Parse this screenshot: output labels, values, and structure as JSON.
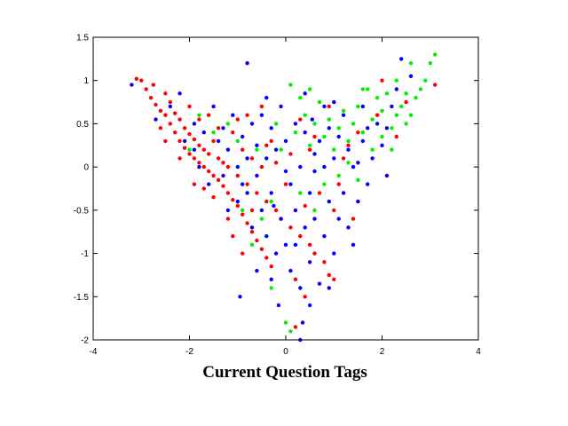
{
  "chart_data": {
    "type": "scatter",
    "title": "Current Question Tags",
    "xlabel": "",
    "ylabel": "",
    "xlim": [
      -4,
      4
    ],
    "ylim": [
      -2,
      1.5
    ],
    "x_ticks": [
      -4,
      -2,
      0,
      2,
      4
    ],
    "x_tick_labels": [
      "-4",
      "-2",
      "0",
      "2",
      "4"
    ],
    "y_ticks": [
      -2,
      -1.5,
      -1,
      -0.5,
      0,
      0.5,
      1,
      1.5
    ],
    "y_tick_labels": [
      "-2",
      "-1.5",
      "-1",
      "-0.5",
      "0",
      "0.5",
      "1",
      "1.5"
    ],
    "grid": false,
    "legend": "none",
    "series": [
      {
        "color": "#ff0000",
        "points": [
          [
            -3.1,
            1.02
          ],
          [
            -2.9,
            0.9
          ],
          [
            -2.8,
            0.8
          ],
          [
            -2.7,
            0.72
          ],
          [
            -2.6,
            0.65
          ],
          [
            -2.5,
            0.6
          ],
          [
            -2.5,
            0.85
          ],
          [
            -2.4,
            0.5
          ],
          [
            -2.4,
            0.75
          ],
          [
            -2.3,
            0.4
          ],
          [
            -2.3,
            0.62
          ],
          [
            -2.2,
            0.3
          ],
          [
            -2.2,
            0.55
          ],
          [
            -2.1,
            0.22
          ],
          [
            -2.1,
            0.45
          ],
          [
            -2.0,
            0.15
          ],
          [
            -2.0,
            0.38
          ],
          [
            -1.9,
            0.1
          ],
          [
            -1.9,
            0.32
          ],
          [
            -1.8,
            0.05
          ],
          [
            -1.8,
            0.25
          ],
          [
            -1.7,
            0.0
          ],
          [
            -1.7,
            0.2
          ],
          [
            -1.6,
            -0.05
          ],
          [
            -1.6,
            0.15
          ],
          [
            -1.5,
            -0.1
          ],
          [
            -1.5,
            0.3
          ],
          [
            -1.4,
            -0.15
          ],
          [
            -1.4,
            0.1
          ],
          [
            -1.3,
            -0.22
          ],
          [
            -1.3,
            0.05
          ],
          [
            -1.2,
            -0.3
          ],
          [
            -1.2,
            0.0
          ],
          [
            -1.1,
            -0.38
          ],
          [
            -1.1,
            0.4
          ],
          [
            -1.0,
            -0.45
          ],
          [
            -1.0,
            -0.1
          ],
          [
            -0.9,
            -0.55
          ],
          [
            -0.9,
            0.2
          ],
          [
            -0.8,
            -0.65
          ],
          [
            -0.8,
            -0.2
          ],
          [
            -0.7,
            -0.75
          ],
          [
            -0.7,
            0.1
          ],
          [
            -0.6,
            -0.85
          ],
          [
            -0.6,
            -0.3
          ],
          [
            -0.5,
            -0.95
          ],
          [
            -0.5,
            0.0
          ],
          [
            -0.4,
            -1.05
          ],
          [
            -0.4,
            -0.4
          ],
          [
            -0.3,
            -1.15
          ],
          [
            -0.3,
            0.3
          ],
          [
            -0.2,
            -0.5
          ],
          [
            -0.1,
            -0.6
          ],
          [
            0.0,
            -0.2
          ],
          [
            0.1,
            -0.7
          ],
          [
            0.2,
            -1.3
          ],
          [
            0.3,
            -0.8
          ],
          [
            0.4,
            -0.45
          ],
          [
            0.5,
            -0.9
          ],
          [
            0.6,
            -1.0
          ],
          [
            0.7,
            -0.3
          ],
          [
            0.8,
            -1.1
          ],
          [
            0.9,
            -1.25
          ],
          [
            1.0,
            -0.5
          ],
          [
            1.1,
            -0.2
          ],
          [
            0.2,
            -1.85
          ],
          [
            -1.6,
            0.6
          ],
          [
            -2.6,
            0.45
          ],
          [
            -1.0,
            0.55
          ],
          [
            -0.5,
            0.7
          ],
          [
            0.3,
            0.55
          ],
          [
            1.2,
            0.1
          ],
          [
            1.5,
            0.4
          ],
          [
            2.0,
            1.0
          ],
          [
            2.5,
            0.75
          ],
          [
            3.1,
            0.95
          ],
          [
            -2.0,
            0.7
          ],
          [
            -1.2,
            -0.6
          ],
          [
            -0.8,
            0.6
          ],
          [
            0.5,
            0.2
          ],
          [
            1.4,
            -0.6
          ],
          [
            1.9,
            0.6
          ],
          [
            -2.2,
            0.1
          ],
          [
            -1.9,
            -0.2
          ],
          [
            -0.9,
            -1.0
          ],
          [
            -0.2,
            0.05
          ],
          [
            0.6,
            0.35
          ],
          [
            1.3,
            0.25
          ],
          [
            2.3,
            0.35
          ],
          [
            -1.5,
            -0.35
          ],
          [
            -0.7,
            -0.5
          ],
          [
            0.1,
            0.15
          ],
          [
            0.9,
            0.7
          ],
          [
            -3.0,
            1.0
          ],
          [
            -2.75,
            0.95
          ],
          [
            -1.8,
            0.55
          ],
          [
            -1.4,
            0.45
          ],
          [
            -1.1,
            -0.8
          ],
          [
            -0.4,
            0.25
          ],
          [
            0.4,
            -1.5
          ],
          [
            1.0,
            -1.3
          ],
          [
            -2.5,
            0.3
          ],
          [
            -1.7,
            -0.25
          ]
        ]
      },
      {
        "color": "#0000ff",
        "points": [
          [
            -3.2,
            0.95
          ],
          [
            -2.7,
            0.55
          ],
          [
            -2.2,
            0.85
          ],
          [
            -1.9,
            0.5
          ],
          [
            -1.7,
            0.4
          ],
          [
            -1.5,
            0.7
          ],
          [
            -1.4,
            0.3
          ],
          [
            -1.3,
            -0.1
          ],
          [
            -1.2,
            0.2
          ],
          [
            -1.1,
            0.6
          ],
          [
            -1.0,
            0.0
          ],
          [
            -1.0,
            -0.4
          ],
          [
            -0.9,
            0.35
          ],
          [
            -0.8,
            -0.3
          ],
          [
            -0.8,
            0.1
          ],
          [
            -0.7,
            -0.7
          ],
          [
            -0.7,
            0.5
          ],
          [
            -0.6,
            -0.1
          ],
          [
            -0.6,
            0.25
          ],
          [
            -0.5,
            -0.5
          ],
          [
            -0.5,
            0.6
          ],
          [
            -0.4,
            -0.8
          ],
          [
            -0.4,
            0.1
          ],
          [
            -0.3,
            -0.3
          ],
          [
            -0.3,
            0.45
          ],
          [
            -0.2,
            -1.0
          ],
          [
            -0.2,
            0.2
          ],
          [
            -0.1,
            -0.6
          ],
          [
            -0.1,
            0.7
          ],
          [
            0.0,
            -0.9
          ],
          [
            0.0,
            0.3
          ],
          [
            0.1,
            -1.2
          ],
          [
            0.1,
            -0.2
          ],
          [
            0.2,
            0.5
          ],
          [
            0.2,
            -0.5
          ],
          [
            0.3,
            -1.4
          ],
          [
            0.3,
            0.0
          ],
          [
            0.4,
            -0.7
          ],
          [
            0.4,
            0.4
          ],
          [
            0.5,
            -1.1
          ],
          [
            0.5,
            -0.3
          ],
          [
            0.6,
            0.15
          ],
          [
            0.6,
            -0.6
          ],
          [
            0.7,
            -1.35
          ],
          [
            0.7,
            0.3
          ],
          [
            0.8,
            -0.8
          ],
          [
            0.8,
            0.0
          ],
          [
            0.9,
            -0.4
          ],
          [
            0.9,
            0.45
          ],
          [
            1.0,
            -1.0
          ],
          [
            1.0,
            0.1
          ],
          [
            1.1,
            -0.6
          ],
          [
            1.1,
            0.35
          ],
          [
            1.2,
            -0.3
          ],
          [
            1.3,
            -0.7
          ],
          [
            1.3,
            0.2
          ],
          [
            1.4,
            0.0
          ],
          [
            1.5,
            -0.4
          ],
          [
            1.6,
            0.3
          ],
          [
            1.7,
            -0.2
          ],
          [
            1.8,
            0.1
          ],
          [
            1.9,
            0.5
          ],
          [
            2.0,
            0.25
          ],
          [
            2.1,
            -0.1
          ],
          [
            2.2,
            0.7
          ],
          [
            2.3,
            0.9
          ],
          [
            2.4,
            1.25
          ],
          [
            2.6,
            1.05
          ],
          [
            -0.8,
            1.2
          ],
          [
            0.3,
            -2.0
          ],
          [
            0.5,
            -1.6
          ],
          [
            -0.95,
            -1.5
          ],
          [
            -0.3,
            -1.3
          ],
          [
            -1.8,
            0.0
          ],
          [
            -2.1,
            0.3
          ],
          [
            -1.6,
            -0.2
          ],
          [
            -1.2,
            -0.5
          ],
          [
            0.8,
            0.7
          ],
          [
            1.2,
            0.6
          ],
          [
            1.6,
            0.7
          ],
          [
            -0.6,
            -1.2
          ],
          [
            0.0,
            -0.05
          ],
          [
            0.2,
            -0.9
          ],
          [
            0.6,
            -0.05
          ],
          [
            1.4,
            -0.9
          ],
          [
            1.7,
            0.45
          ],
          [
            -1.3,
            0.45
          ],
          [
            -0.4,
            0.8
          ],
          [
            0.4,
            0.85
          ],
          [
            1.0,
            0.75
          ],
          [
            -2.4,
            0.7
          ],
          [
            -1.9,
            0.2
          ],
          [
            -0.15,
            -1.6
          ],
          [
            0.35,
            -1.8
          ],
          [
            0.9,
            -1.4
          ],
          [
            1.5,
            0.05
          ],
          [
            2.1,
            0.45
          ],
          [
            -0.9,
            -0.2
          ],
          [
            -0.25,
            -0.45
          ],
          [
            0.55,
            0.55
          ]
        ]
      },
      {
        "color": "#00ee00",
        "points": [
          [
            3.1,
            1.3
          ],
          [
            3.0,
            1.2
          ],
          [
            2.9,
            1.0
          ],
          [
            2.8,
            0.9
          ],
          [
            2.7,
            0.8
          ],
          [
            2.6,
            0.6
          ],
          [
            2.5,
            0.85
          ],
          [
            2.5,
            0.5
          ],
          [
            2.4,
            0.7
          ],
          [
            2.3,
            0.6
          ],
          [
            2.2,
            0.45
          ],
          [
            2.1,
            0.85
          ],
          [
            2.0,
            0.65
          ],
          [
            2.0,
            0.35
          ],
          [
            1.9,
            0.8
          ],
          [
            1.8,
            0.55
          ],
          [
            1.7,
            0.9
          ],
          [
            1.6,
            0.4
          ],
          [
            1.5,
            0.7
          ],
          [
            1.4,
            0.5
          ],
          [
            1.3,
            0.3
          ],
          [
            1.2,
            0.65
          ],
          [
            1.1,
            0.45
          ],
          [
            1.0,
            0.2
          ],
          [
            0.9,
            0.55
          ],
          [
            0.8,
            0.35
          ],
          [
            0.7,
            0.75
          ],
          [
            0.6,
            0.5
          ],
          [
            0.5,
            0.25
          ],
          [
            0.4,
            0.6
          ],
          [
            0.3,
            0.8
          ],
          [
            0.2,
            0.4
          ],
          [
            0.1,
            0.95
          ],
          [
            -0.1,
            0.2
          ],
          [
            -0.3,
            -0.4
          ],
          [
            -0.5,
            -0.6
          ],
          [
            -0.7,
            -0.9
          ],
          [
            -1.0,
            0.3
          ],
          [
            -1.2,
            0.5
          ],
          [
            -1.5,
            0.4
          ],
          [
            -1.8,
            0.6
          ],
          [
            -2.0,
            0.2
          ],
          [
            0.0,
            -1.8
          ],
          [
            0.1,
            -1.9
          ],
          [
            -0.3,
            -1.4
          ],
          [
            0.6,
            -0.5
          ],
          [
            0.8,
            -0.2
          ],
          [
            1.1,
            -0.1
          ],
          [
            1.3,
            0.05
          ],
          [
            1.5,
            -0.15
          ],
          [
            2.3,
            1.0
          ],
          [
            2.6,
            1.2
          ],
          [
            2.2,
            0.2
          ],
          [
            1.8,
            0.2
          ],
          [
            1.6,
            0.9
          ],
          [
            0.5,
            0.9
          ],
          [
            -0.2,
            0.5
          ],
          [
            -0.6,
            0.2
          ],
          [
            -0.9,
            -0.5
          ],
          [
            0.3,
            -0.3
          ]
        ]
      }
    ]
  }
}
